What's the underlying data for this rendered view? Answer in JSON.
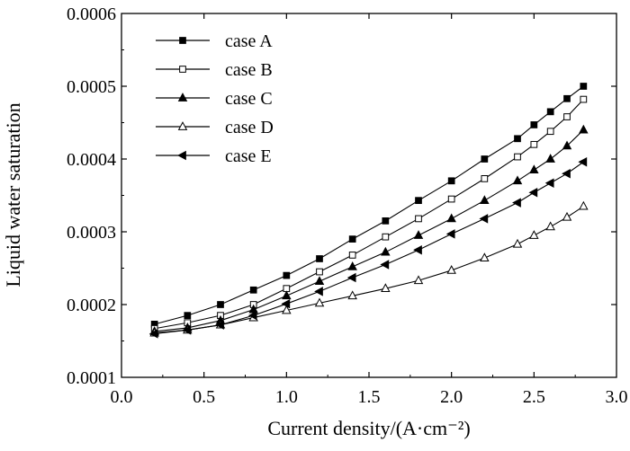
{
  "chart_data": {
    "type": "line",
    "xlabel": "Current density/(A·cm⁻²)",
    "ylabel": "Liquid water saturation",
    "xlim": [
      0.0,
      3.0
    ],
    "ylim": [
      0.0001,
      0.0006
    ],
    "xticks": [
      "0.0",
      "0.5",
      "1.0",
      "1.5",
      "2.0",
      "2.5",
      "3.0"
    ],
    "yticks": [
      "0.0001",
      "0.0002",
      "0.0003",
      "0.0004",
      "0.0005",
      "0.0006"
    ],
    "grid": false,
    "legend_position": "top-left",
    "x": [
      0.2,
      0.4,
      0.6,
      0.8,
      1.0,
      1.2,
      1.4,
      1.6,
      1.8,
      2.0,
      2.2,
      2.4,
      2.5,
      2.6,
      2.7,
      2.8
    ],
    "series": [
      {
        "name": "case A",
        "marker": "filled-square",
        "values": [
          0.000173,
          0.000185,
          0.0002,
          0.00022,
          0.00024,
          0.000263,
          0.00029,
          0.000315,
          0.000343,
          0.00037,
          0.0004,
          0.000428,
          0.000447,
          0.000465,
          0.000483,
          0.0005
        ]
      },
      {
        "name": "case B",
        "marker": "open-square",
        "values": [
          0.000167,
          0.000175,
          0.000185,
          0.0002,
          0.000222,
          0.000245,
          0.000268,
          0.000293,
          0.000318,
          0.000345,
          0.000373,
          0.000403,
          0.00042,
          0.000438,
          0.000458,
          0.000482
        ]
      },
      {
        "name": "case C",
        "marker": "filled-triangle-up",
        "values": [
          0.000163,
          0.000168,
          0.000178,
          0.000193,
          0.000212,
          0.000232,
          0.000252,
          0.000272,
          0.000295,
          0.000318,
          0.000343,
          0.00037,
          0.000385,
          0.0004,
          0.000418,
          0.00044
        ]
      },
      {
        "name": "case D",
        "marker": "open-triangle-up",
        "values": [
          0.000161,
          0.000165,
          0.000172,
          0.000182,
          0.000192,
          0.000202,
          0.000212,
          0.000222,
          0.000233,
          0.000247,
          0.000264,
          0.000283,
          0.000295,
          0.000307,
          0.00032,
          0.000335
        ]
      },
      {
        "name": "case E",
        "marker": "filled-triangle-left",
        "values": [
          0.00016,
          0.000165,
          0.000172,
          0.000185,
          0.000201,
          0.000218,
          0.000237,
          0.000255,
          0.000275,
          0.000297,
          0.000318,
          0.00034,
          0.000354,
          0.000367,
          0.00038,
          0.000396
        ]
      }
    ]
  }
}
